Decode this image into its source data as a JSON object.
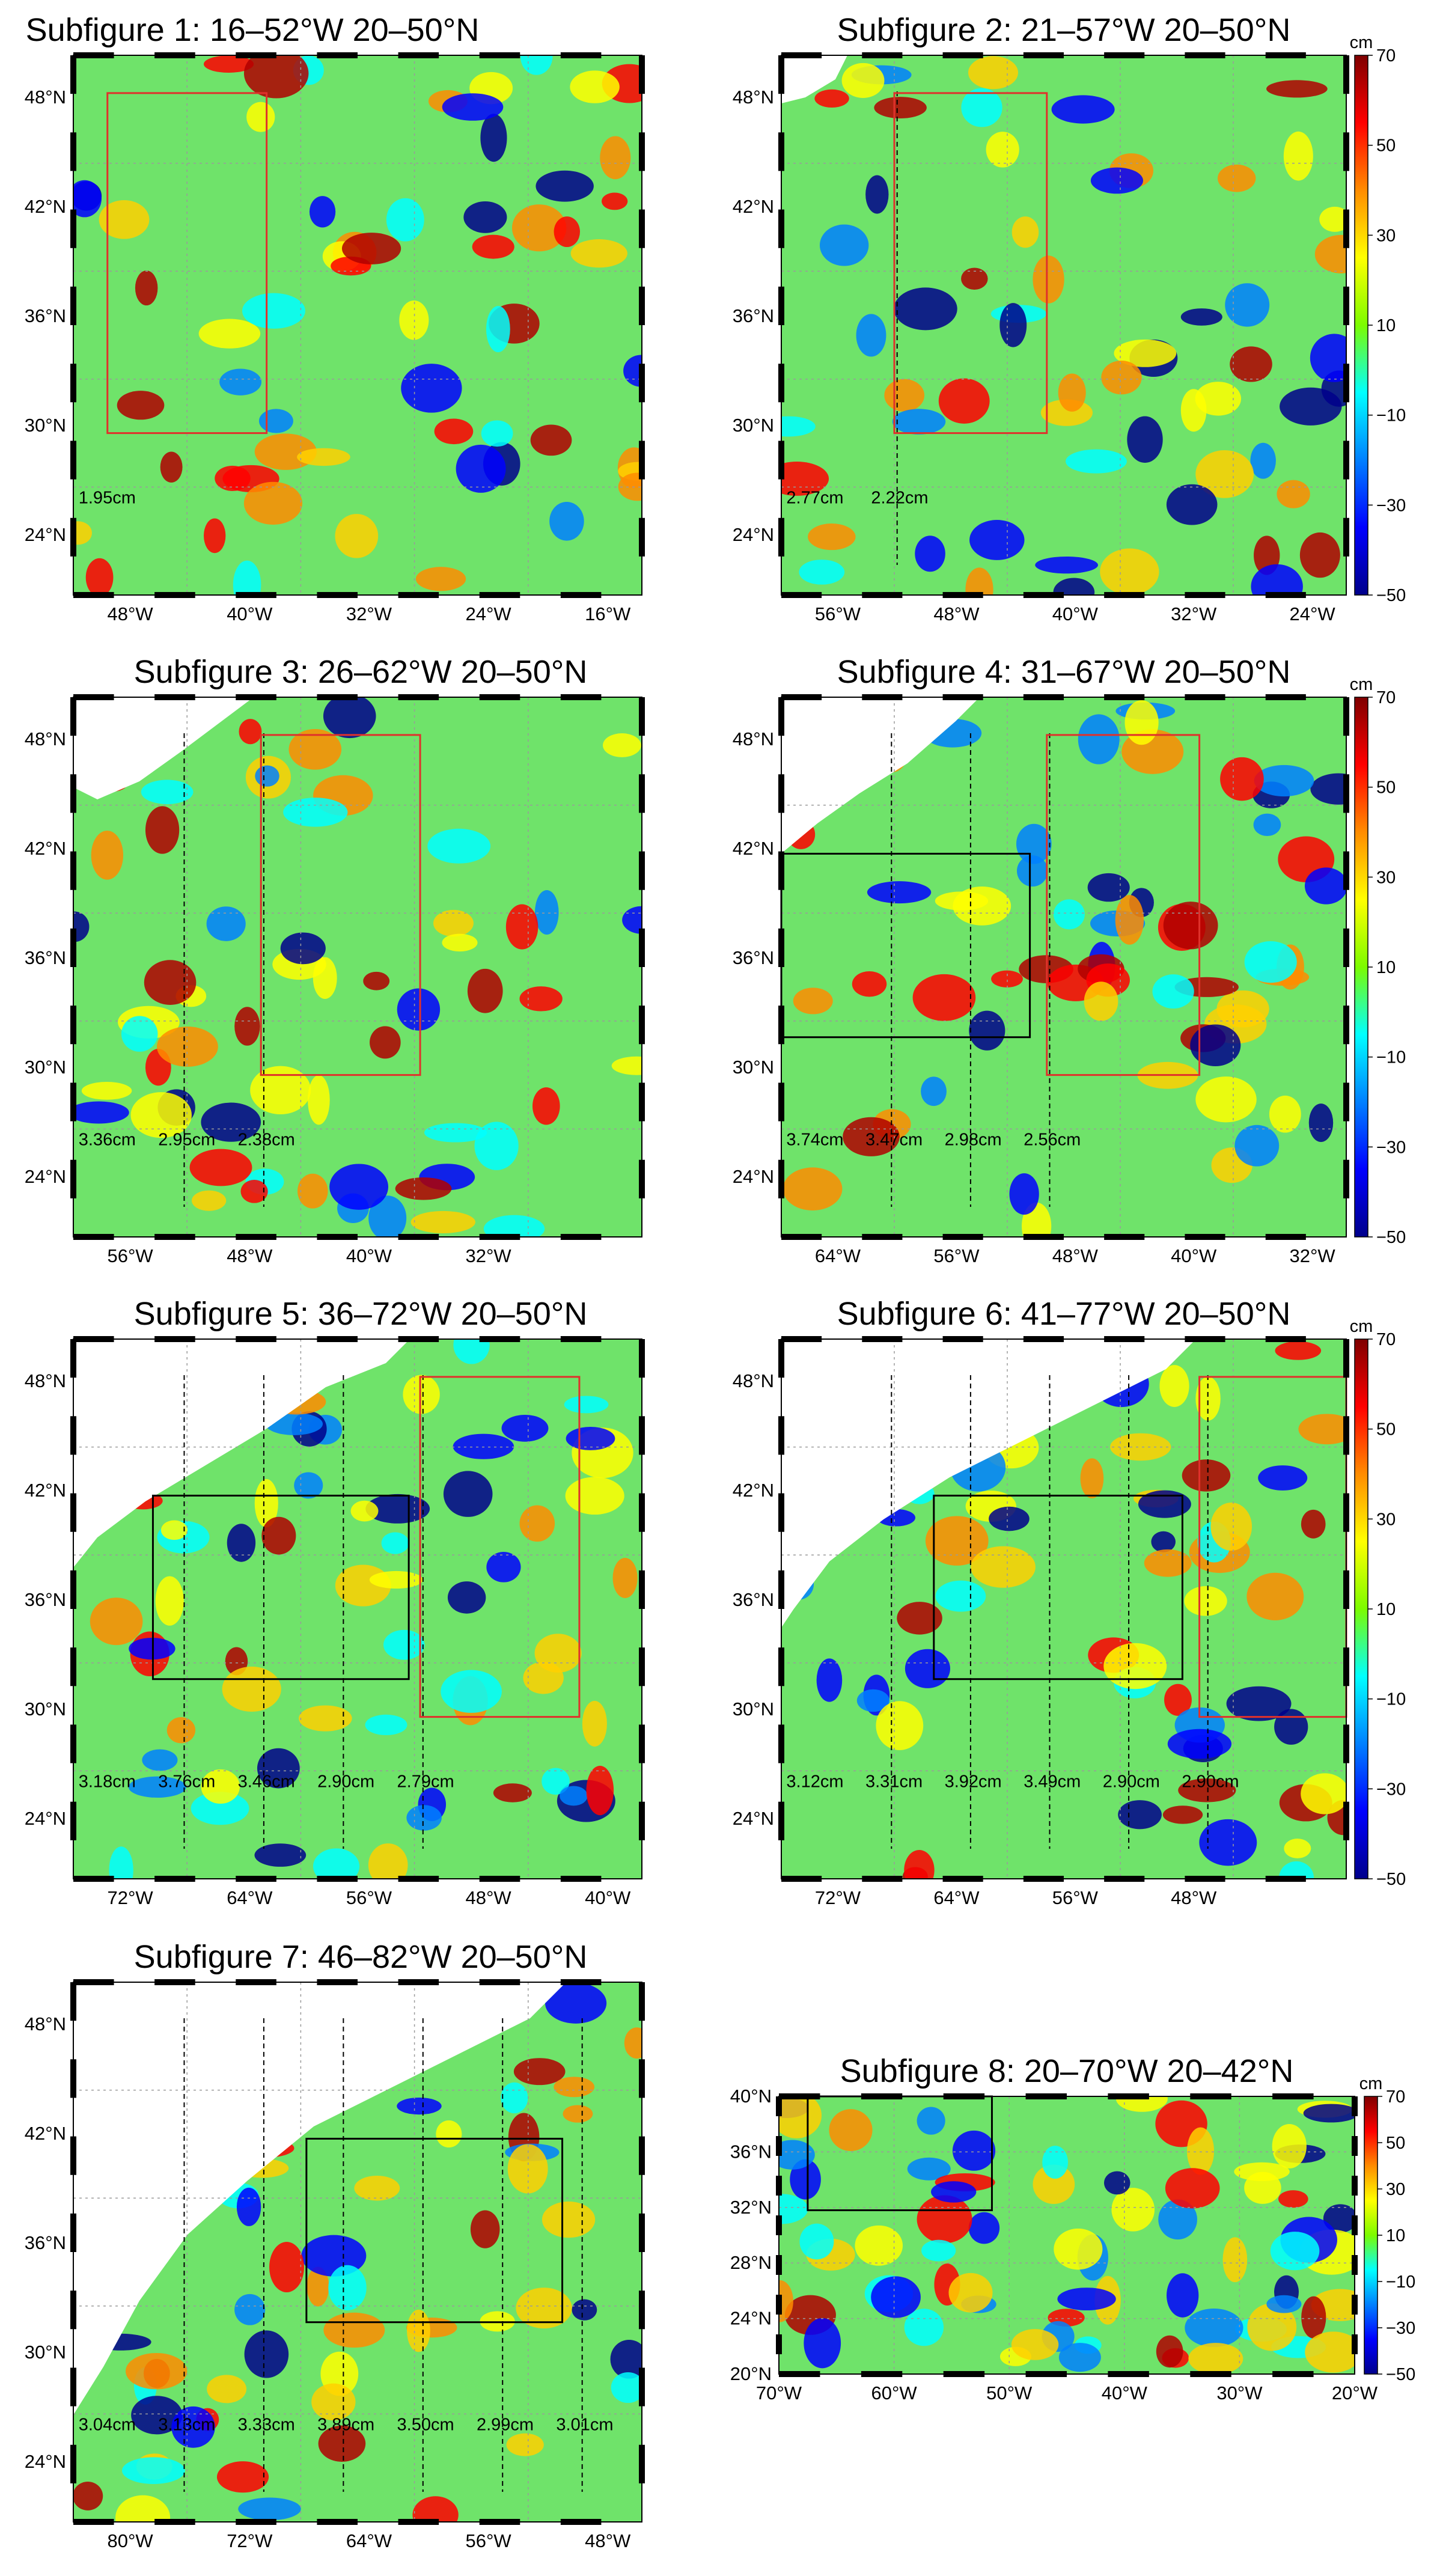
{
  "colorbar": {
    "unit": "cm",
    "ticks": [
      "70",
      "50",
      "30",
      "10",
      "−10",
      "−30",
      "−50"
    ],
    "colors": [
      "#7f0000",
      "#ff0000",
      "#ff8c00",
      "#ffff00",
      "#7cfc00",
      "#00ffff",
      "#0080ff",
      "#0000ff",
      "#00008b"
    ]
  },
  "land_color": "#ffffff",
  "ocean_color": "#6fe36a",
  "box_colors": {
    "red": "#e0312b",
    "black": "#000000"
  },
  "subfigures": [
    {
      "title": "Subfigure 1: 16–52°W 20–50°N",
      "x_ticks": [
        "48°W",
        "40°W",
        "32°W",
        "24°W",
        "16°W"
      ],
      "y_ticks": [
        "48°N",
        "42°N",
        "36°N",
        "30°N",
        "24°N"
      ],
      "values": [
        "1.95cm"
      ],
      "colorbar": false
    },
    {
      "title": "Subfigure 2: 21–57°W 20–50°N",
      "x_ticks": [
        "56°W",
        "48°W",
        "40°W",
        "32°W",
        "24°W"
      ],
      "y_ticks": [
        "48°N",
        "42°N",
        "36°N",
        "30°N",
        "24°N"
      ],
      "values": [
        "2.77cm",
        "2.22cm"
      ],
      "colorbar": true
    },
    {
      "title": "Subfigure 3: 26–62°W 20–50°N",
      "x_ticks": [
        "56°W",
        "48°W",
        "40°W",
        "32°W"
      ],
      "y_ticks": [
        "48°N",
        "42°N",
        "36°N",
        "30°N",
        "24°N"
      ],
      "values": [
        "3.36cm",
        "2.95cm",
        "2.38cm"
      ],
      "colorbar": false
    },
    {
      "title": "Subfigure 4: 31–67°W 20–50°N",
      "x_ticks": [
        "64°W",
        "56°W",
        "48°W",
        "40°W",
        "32°W"
      ],
      "y_ticks": [
        "48°N",
        "42°N",
        "36°N",
        "30°N",
        "24°N"
      ],
      "values": [
        "3.74cm",
        "3.47cm",
        "2.98cm",
        "2.56cm"
      ],
      "colorbar": true
    },
    {
      "title": "Subfigure 5: 36–72°W 20–50°N",
      "x_ticks": [
        "72°W",
        "64°W",
        "56°W",
        "48°W",
        "40°W"
      ],
      "y_ticks": [
        "48°N",
        "42°N",
        "36°N",
        "30°N",
        "24°N"
      ],
      "values": [
        "3.18cm",
        "3.76cm",
        "3.46cm",
        "2.90cm",
        "2.79cm"
      ],
      "colorbar": false
    },
    {
      "title": "Subfigure 6: 41–77°W 20–50°N",
      "x_ticks": [
        "72°W",
        "64°W",
        "56°W",
        "48°W"
      ],
      "y_ticks": [
        "48°N",
        "42°N",
        "36°N",
        "30°N",
        "24°N"
      ],
      "values": [
        "3.12cm",
        "3.31cm",
        "3.92cm",
        "3.49cm",
        "2.90cm",
        "2.90cm"
      ],
      "colorbar": true
    },
    {
      "title": "Subfigure 7: 46–82°W 20–50°N",
      "x_ticks": [
        "80°W",
        "72°W",
        "64°W",
        "56°W",
        "48°W"
      ],
      "y_ticks": [
        "48°N",
        "42°N",
        "36°N",
        "30°N",
        "24°N"
      ],
      "values": [
        "3.04cm",
        "3.13cm",
        "3.33cm",
        "3.89cm",
        "3.50cm",
        "2.99cm",
        "3.01cm"
      ],
      "colorbar": false
    },
    {
      "title": "Subfigure 8: 20–70°W 20–42°N",
      "x_ticks": [
        "70°W",
        "60°W",
        "50°W",
        "40°W",
        "30°W",
        "20°W"
      ],
      "y_ticks": [
        "40°N",
        "36°N",
        "32°N",
        "28°N",
        "24°N",
        "20°N"
      ],
      "values": [],
      "colorbar": true
    }
  ]
}
